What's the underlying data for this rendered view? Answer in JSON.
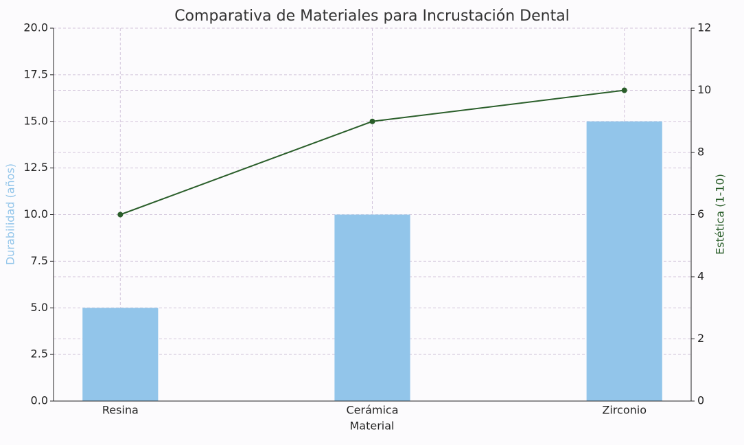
{
  "chart_data": {
    "type": "bar-line",
    "title": "Comparativa de Materiales para Incrustación Dental",
    "x_label": "Material",
    "y_label": "Durabilidad (años)",
    "y2_label": "Estética (1-10)",
    "categories": [
      "Resina",
      "Cerámica",
      "Zirconio"
    ],
    "series": [
      {
        "name": "Durabilidad (años)",
        "type": "bar",
        "color": "#92c5ea",
        "values": [
          5,
          10,
          15
        ]
      },
      {
        "name": "Estética (1-10)",
        "type": "line",
        "color": "#2a5e2a",
        "axis": "y2",
        "values": [
          6,
          9,
          10
        ]
      }
    ],
    "ylim": [
      0,
      20
    ],
    "yticks": [
      {
        "value": 0,
        "label": "0.0"
      },
      {
        "value": 2.5,
        "label": "2.5"
      },
      {
        "value": 5,
        "label": "5.0"
      },
      {
        "value": 7.5,
        "label": "7.5"
      },
      {
        "value": 10,
        "label": "10.0"
      },
      {
        "value": 12.5,
        "label": "12.5"
      },
      {
        "value": 15,
        "label": "15.0"
      },
      {
        "value": 17.5,
        "label": "17.5"
      },
      {
        "value": 20,
        "label": "20.0"
      }
    ],
    "y2lim": [
      0,
      12
    ],
    "y2ticks": [
      0,
      2,
      4,
      6,
      8,
      10,
      12
    ],
    "grid": true
  }
}
